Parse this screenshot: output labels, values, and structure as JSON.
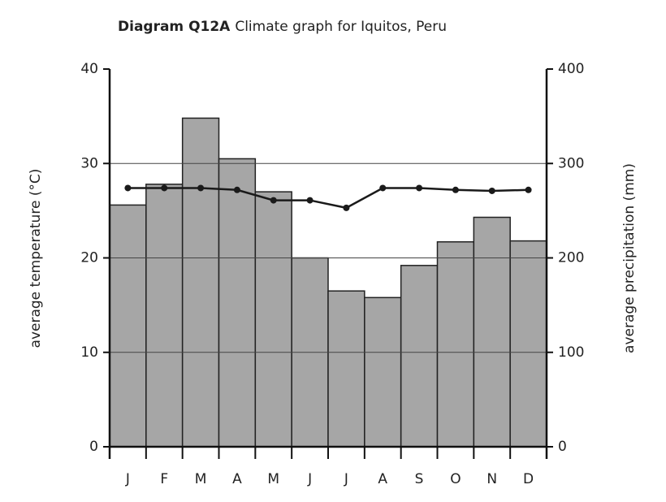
{
  "chart_data": {
    "type": "combo",
    "title_label": "Diagram Q12A",
    "title": "Climate graph for Iquitos, Peru",
    "categories": [
      "J",
      "F",
      "M",
      "A",
      "M",
      "J",
      "J",
      "A",
      "S",
      "O",
      "N",
      "D"
    ],
    "y_label": "average temperature (°C)",
    "y2_label": "average precipitation (mm)",
    "ylim": [
      0,
      40
    ],
    "yticks": [
      0,
      10,
      20,
      30,
      40
    ],
    "y2lim": [
      0,
      400
    ],
    "y2ticks": [
      0,
      100,
      200,
      300,
      400
    ],
    "grid": true,
    "series": [
      {
        "name": "average precipitation",
        "type": "bar",
        "axis": "y2",
        "color": "#a6a6a6",
        "values": [
          256,
          278,
          348,
          305,
          270,
          200,
          165,
          158,
          192,
          217,
          243,
          218
        ]
      },
      {
        "name": "average temperature",
        "type": "line",
        "axis": "y",
        "color": "#1a1a1a",
        "values": [
          27.4,
          27.4,
          27.4,
          27.2,
          26.1,
          26.1,
          25.3,
          27.4,
          27.4,
          27.2,
          27.1,
          27.2
        ]
      }
    ]
  }
}
